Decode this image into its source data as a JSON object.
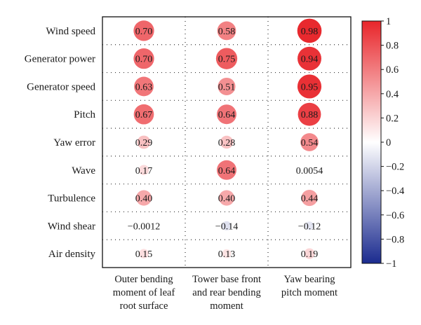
{
  "chart_data": {
    "type": "heatmap",
    "rows": [
      "Wind speed",
      "Generator power",
      "Generator speed",
      "Pitch",
      "Yaw error",
      "Wave",
      "Turbulence",
      "Wind shear",
      "Air density"
    ],
    "columns": [
      [
        "Outer bending",
        "moment of leaf",
        "root surface"
      ],
      [
        "Tower base front",
        "and rear bending",
        "moment"
      ],
      [
        "Yaw bearing",
        "pitch moment"
      ]
    ],
    "values": [
      [
        0.7,
        0.58,
        0.98
      ],
      [
        0.7,
        0.75,
        0.94
      ],
      [
        0.63,
        0.51,
        0.95
      ],
      [
        0.67,
        0.64,
        0.88
      ],
      [
        0.29,
        0.28,
        0.54
      ],
      [
        0.17,
        0.64,
        0.0054
      ],
      [
        0.4,
        0.4,
        0.44
      ],
      [
        -0.0012,
        -0.14,
        -0.12
      ],
      [
        0.15,
        0.13,
        0.19
      ]
    ],
    "value_labels": [
      [
        "0.70",
        "0.58",
        "0.98"
      ],
      [
        "0.70",
        "0.75",
        "0.94"
      ],
      [
        "0.63",
        "0.51",
        "0.95"
      ],
      [
        "0.67",
        "0.64",
        "0.88"
      ],
      [
        "0.29",
        "0.28",
        "0.54"
      ],
      [
        "0.17",
        "0.64",
        "0.0054"
      ],
      [
        "0.40",
        "0.40",
        "0.44"
      ],
      [
        "−0.0012",
        "−0.14",
        "−0.12"
      ],
      [
        "0.15",
        "0.13",
        "0.19"
      ]
    ],
    "colorbar": {
      "range": [
        -1,
        1
      ],
      "ticks": [
        1,
        0.8,
        0.6,
        0.4,
        0.2,
        0,
        -0.2,
        -0.4,
        -0.6,
        -0.8,
        -1
      ],
      "tick_labels": [
        "1",
        "0.8",
        "0.6",
        "0.4",
        "0.2",
        "0",
        "−0.2",
        "−0.4",
        "−0.6",
        "−0.8",
        "−1"
      ],
      "colors": {
        "positive": "#e8252a",
        "zero": "#ffffff",
        "negative": "#1b2b8f"
      }
    },
    "grid": "dotted"
  }
}
